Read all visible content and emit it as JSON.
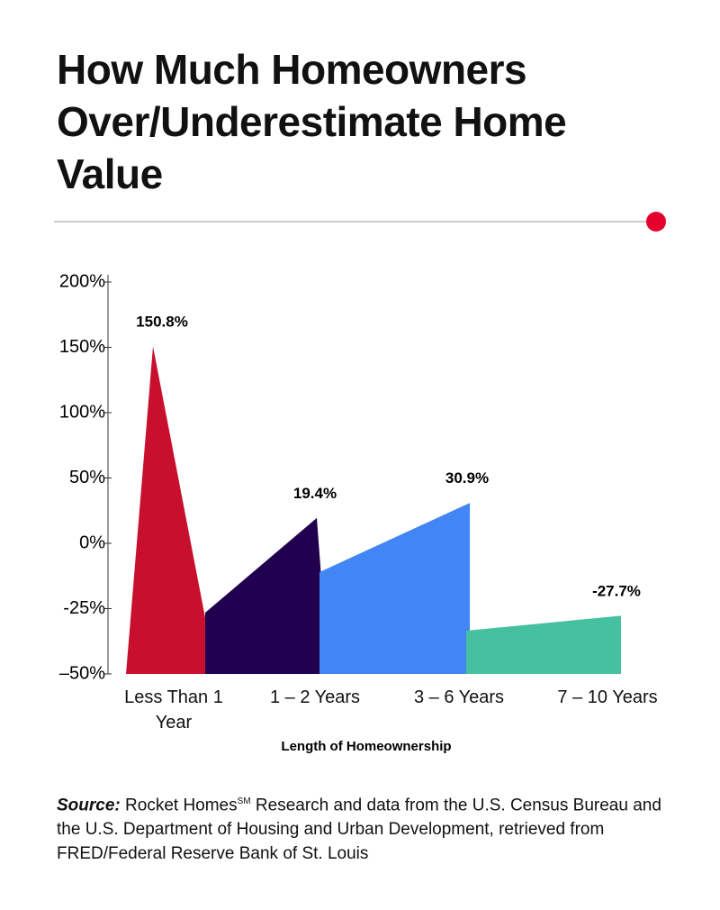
{
  "chart_data": {
    "type": "area-peaks",
    "title": "How Much Homeowners Over/Underestimate Home Value",
    "categories": [
      "Less Than 1 Year",
      "1 – 2 Years",
      "3 – 6 Years",
      "7 – 10 Years"
    ],
    "values": [
      150.8,
      19.4,
      30.9,
      -27.7
    ],
    "value_labels": [
      "150.8%",
      "19.4%",
      "30.9%",
      "-27.7%"
    ],
    "colors": [
      "#c8102e",
      "#20004f",
      "#4285f4",
      "#45c1a0"
    ],
    "ylim": [
      -50,
      200
    ],
    "yticks": [
      {
        "value": 200,
        "label": "200%"
      },
      {
        "value": 150,
        "label": "150%"
      },
      {
        "value": 100,
        "label": "100%"
      },
      {
        "value": 50,
        "label": "50%"
      },
      {
        "value": 0,
        "label": "0%"
      },
      {
        "value": -25,
        "label": "-25%"
      },
      {
        "value": -50,
        "label": "–50%"
      }
    ],
    "x_label": "Length of Homeownership",
    "source_label": "Source:",
    "source_main": "Rocket Homes",
    "source_sup": "SM",
    "source_rest": "Research and data from the U.S. Census Bureau and the U.S. Department of Housing and Urban Development, retrieved from FRED/Federal Reserve Bank of St. Louis"
  }
}
